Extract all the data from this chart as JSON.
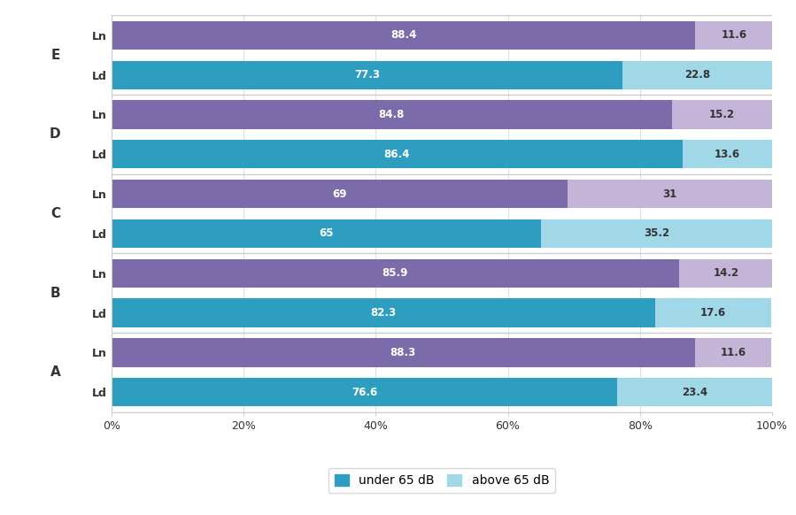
{
  "categories": [
    [
      "E",
      "Ln"
    ],
    [
      "E",
      "Ld"
    ],
    [
      "D",
      "Ln"
    ],
    [
      "D",
      "Ld"
    ],
    [
      "C",
      "Ln"
    ],
    [
      "C",
      "Ld"
    ],
    [
      "B",
      "Ln"
    ],
    [
      "B",
      "Ld"
    ],
    [
      "A",
      "Ln"
    ],
    [
      "A",
      "Ld"
    ]
  ],
  "under_65": [
    88.4,
    77.3,
    84.8,
    86.4,
    69.0,
    65.0,
    85.9,
    82.3,
    88.3,
    76.6
  ],
  "above_65": [
    11.6,
    22.8,
    15.2,
    13.6,
    31.0,
    35.2,
    14.2,
    17.6,
    11.6,
    23.4
  ],
  "under_65_labels": [
    "88.4",
    "77.3",
    "84.8",
    "86.4",
    "69",
    "65",
    "85.9",
    "82.3",
    "88.3",
    "76.6"
  ],
  "above_65_labels": [
    "11.6",
    "22.8",
    "15.2",
    "13.6",
    "31",
    "35.2",
    "14.2",
    "17.6",
    "11.6",
    "23.4"
  ],
  "bar_colors_under": [
    "#7b6baa",
    "#2e9ec0",
    "#7b6baa",
    "#2e9ec0",
    "#7b6baa",
    "#2e9ec0",
    "#7b6baa",
    "#2e9ec0",
    "#7b6baa",
    "#2e9ec0"
  ],
  "bar_colors_above": [
    "#c4b4d8",
    "#a0d8e8",
    "#c4b4d8",
    "#a0d8e8",
    "#c4b4d8",
    "#a0d8e8",
    "#c4b4d8",
    "#a0d8e8",
    "#c4b4d8",
    "#a0d8e8"
  ],
  "group_labels": [
    "E",
    "D",
    "C",
    "B",
    "A"
  ],
  "group_y_centers": [
    8.5,
    6.5,
    4.5,
    2.5,
    0.5
  ],
  "xtick_labels": [
    "0%",
    "20%",
    "40%",
    "60%",
    "80%",
    "100%"
  ],
  "xtick_values": [
    0,
    20,
    40,
    60,
    80,
    100
  ],
  "bg_color": "#ffffff",
  "plot_bg": "#ffffff",
  "bar_height": 0.72,
  "font_size_sublabel": 9,
  "font_size_grouplabel": 11,
  "font_size_bar": 8.5,
  "font_size_ticks": 9,
  "legend_color_under": "#2e9ec0",
  "legend_color_above": "#a0d8e8",
  "divider_color": "#cccccc",
  "top_bar_color": "#b0c8d8"
}
